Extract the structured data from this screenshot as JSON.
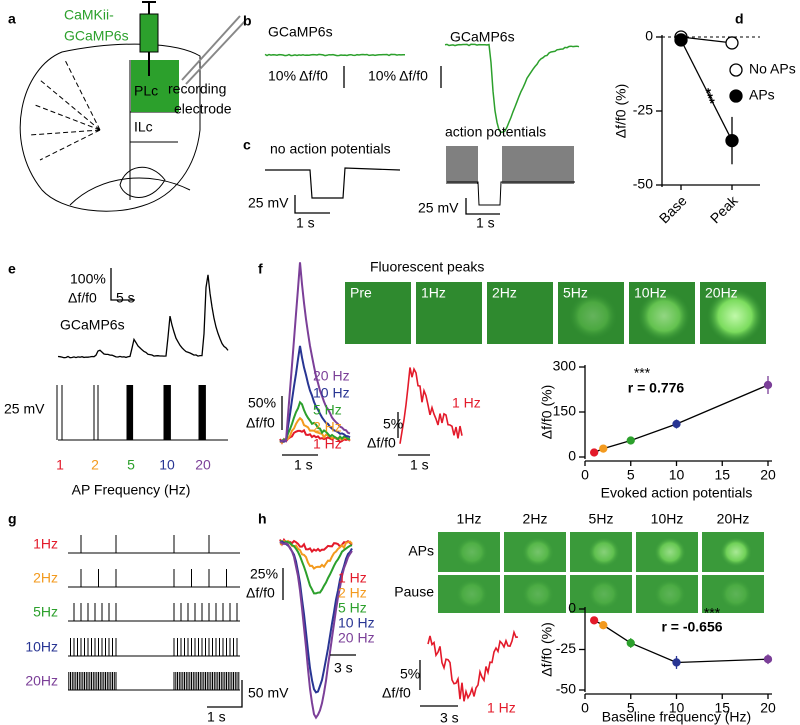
{
  "panels": {
    "a": {
      "letter": "a",
      "label": [
        "CaMKii-",
        "GCaMP6s"
      ],
      "regions": [
        "PLc",
        "ILc"
      ],
      "electrode": [
        "recording",
        "electrode"
      ]
    },
    "b": {
      "letter": "b",
      "traces": [
        "GCaMP6s",
        "GCaMP6s"
      ],
      "scales": [
        "10% Δf/f0",
        "10% Δf/f0"
      ]
    },
    "c": {
      "letter": "c",
      "traces": [
        "no action potentials",
        "action potentials"
      ],
      "voltage_scales": [
        "25 mV",
        "25 mV"
      ],
      "time_scales": [
        "1 s",
        "1 s"
      ]
    },
    "d": {
      "letter": "d"
    },
    "e": {
      "letter": "e",
      "scale_y": [
        "100%",
        "Δf/f0"
      ],
      "scale_x": "5 s",
      "trace": "GCaMP6s",
      "voltage_scale": "25 mV",
      "frequencies": [
        "1",
        "2",
        "5",
        "10",
        "20"
      ],
      "xlabel": "AP Frequency (Hz)"
    },
    "f": {
      "letter": "f",
      "images_title": "Fluorescent peaks",
      "images": [
        "Pre",
        "1Hz",
        "2Hz",
        "5Hz",
        "10Hz",
        "20Hz"
      ],
      "legend": [
        "20 Hz",
        "10 Hz",
        "5 Hz",
        "2 Hz",
        "1 Hz"
      ],
      "scale_y": [
        "50%",
        "Δf/f0"
      ],
      "scale_x": "1 s",
      "single_scale_y": [
        "5%",
        "Δf/f0"
      ],
      "single_scale_x": "1 s",
      "single_label": "1 Hz"
    },
    "g": {
      "letter": "g",
      "rows": [
        "1Hz",
        "2Hz",
        "5Hz",
        "10Hz",
        "20Hz"
      ],
      "voltage_scale": "50 mV",
      "time_scale": "1 s"
    },
    "h": {
      "letter": "h",
      "legend": [
        "1 Hz",
        "2 Hz",
        "5 Hz",
        "10 Hz",
        "20 Hz"
      ],
      "scale_y": [
        "25%",
        "Δf/f0"
      ],
      "scale_x": "3 s",
      "image_columns": [
        "1Hz",
        "2Hz",
        "5Hz",
        "10Hz",
        "20Hz"
      ],
      "image_rows": [
        "APs",
        "Pause"
      ],
      "single_scale_y": [
        "5%",
        "Δf/f0"
      ],
      "single_scale_x": "3 s",
      "single_label": "1 Hz"
    }
  },
  "frequency_colors": [
    "#e31a2a",
    "#f39a1e",
    "#2ca02c",
    "#283593",
    "#7b3f98"
  ],
  "green": "#2ca02c",
  "chart_data": [
    {
      "type": "line",
      "ylabel": "Δf/f0 (%)",
      "categories": [
        "Base",
        "Peak"
      ],
      "series": [
        {
          "name": "No APs",
          "color": "#000",
          "marker": "open",
          "values": [
            0,
            -2
          ]
        },
        {
          "name": "APs",
          "color": "#000",
          "marker": "filled",
          "values": [
            -1,
            -35
          ],
          "errors": [
            2,
            8
          ]
        }
      ],
      "ylim": [
        -50,
        0
      ],
      "yticks": [
        0,
        -25,
        -50
      ],
      "reference_line": 0,
      "legend": "right",
      "annotations": [
        "***"
      ]
    },
    {
      "type": "scatter",
      "ylabel": "Δf/f0 (%)",
      "xlabel": "Evoked action potentials",
      "x": [
        1,
        2,
        5,
        10,
        20
      ],
      "series": [
        {
          "color": "#000",
          "values": [
            15,
            28,
            55,
            110,
            240
          ],
          "errors": [
            5,
            5,
            10,
            15,
            30
          ],
          "point_colors": [
            "#e31a2a",
            "#f39a1e",
            "#2ca02c",
            "#283593",
            "#7b3f98"
          ]
        }
      ],
      "xlim": [
        0,
        20
      ],
      "xticks": [
        0,
        5,
        10,
        15,
        20
      ],
      "ylim": [
        0,
        300
      ],
      "yticks": [
        0,
        150,
        300
      ],
      "annotations": [
        "***",
        "r = 0.776"
      ]
    },
    {
      "type": "scatter",
      "ylabel": "Δf/f0 (%)",
      "xlabel": "Baseline frequency (Hz)",
      "x": [
        1,
        2,
        5,
        10,
        20
      ],
      "series": [
        {
          "color": "#000",
          "values": [
            -7,
            -10,
            -21,
            -33,
            -31
          ],
          "errors": [
            1,
            1,
            3,
            4,
            3
          ],
          "point_colors": [
            "#e31a2a",
            "#f39a1e",
            "#2ca02c",
            "#283593",
            "#7b3f98"
          ]
        }
      ],
      "xlim": [
        0,
        20
      ],
      "xticks": [
        0,
        5,
        10,
        15,
        20
      ],
      "ylim": [
        -50,
        0
      ],
      "yticks": [
        0,
        -25,
        -50
      ],
      "annotations": [
        "***",
        "r = -0.656"
      ]
    }
  ]
}
